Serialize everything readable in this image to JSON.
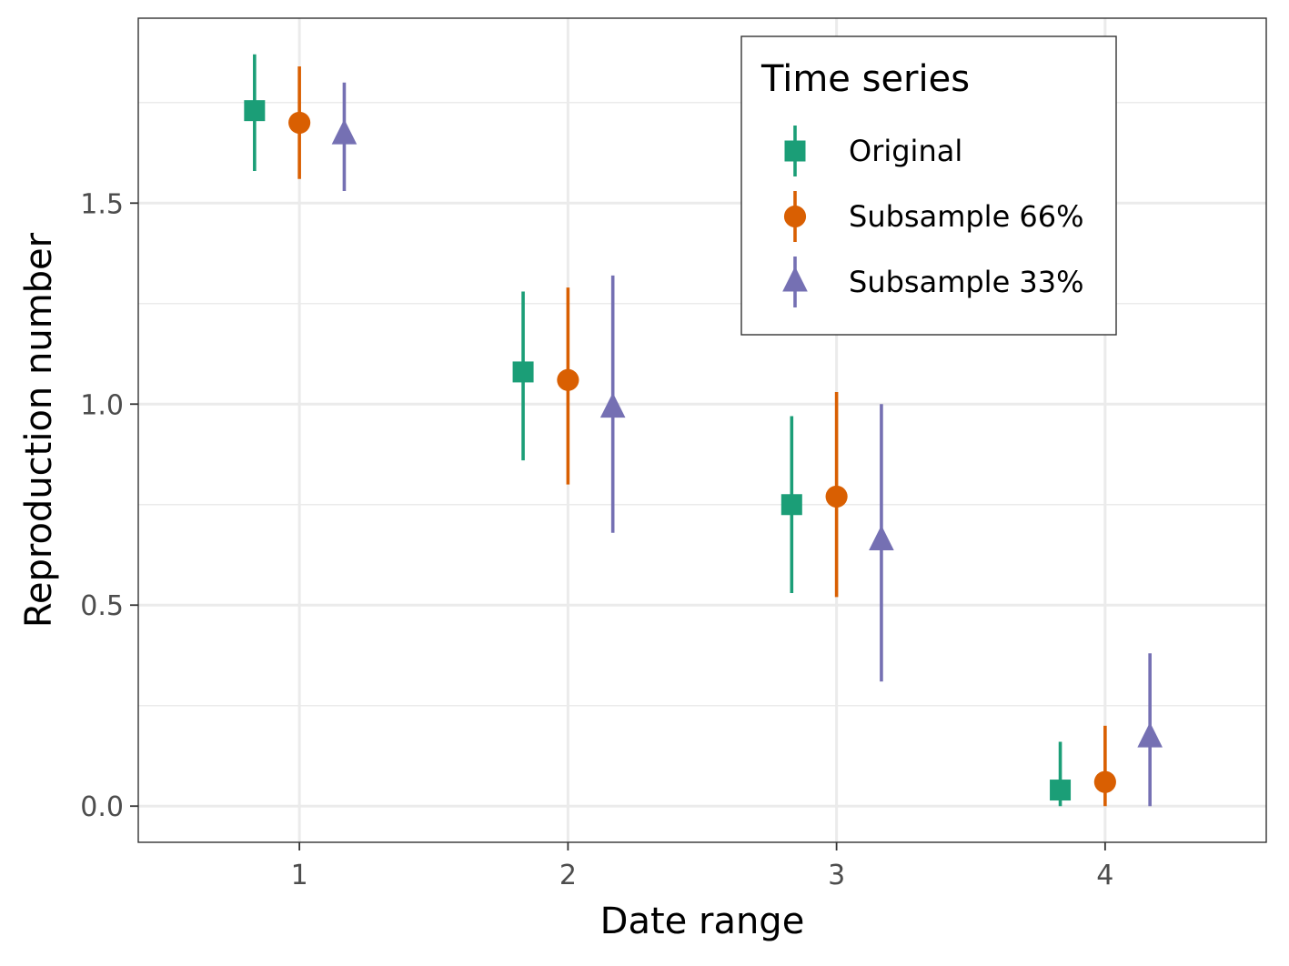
{
  "chart_data": {
    "type": "scatter",
    "title": "",
    "xlabel": "Date range",
    "ylabel": "Reproduction number",
    "categories": [
      "1",
      "2",
      "3",
      "4"
    ],
    "xlim": [
      0.4,
      4.6
    ],
    "ylim": [
      -0.09,
      1.96
    ],
    "yticks": [
      0.0,
      0.5,
      1.0,
      1.5
    ],
    "ytick_labels": [
      "0.0",
      "0.5",
      "1.0",
      "1.5"
    ],
    "grid": true,
    "legend": {
      "title": "Time series",
      "placement": "top-right"
    },
    "dodge": [
      -0.167,
      0,
      0.167
    ],
    "series": [
      {
        "name": "Original",
        "color": "#1b9e77",
        "shape": "square",
        "values": [
          1.73,
          1.08,
          0.75,
          0.04
        ],
        "lower": [
          1.58,
          0.86,
          0.53,
          0.0
        ],
        "upper": [
          1.87,
          1.28,
          0.97,
          0.16
        ]
      },
      {
        "name": "Subsample 66%",
        "color": "#d95f02",
        "shape": "circle",
        "values": [
          1.7,
          1.06,
          0.77,
          0.06
        ],
        "lower": [
          1.56,
          0.8,
          0.52,
          0.0
        ],
        "upper": [
          1.84,
          1.29,
          1.03,
          0.2
        ]
      },
      {
        "name": "Subsample 33%",
        "color": "#7570b3",
        "shape": "triangle",
        "values": [
          1.67,
          0.99,
          0.66,
          0.17
        ],
        "lower": [
          1.53,
          0.68,
          0.31,
          0.0
        ],
        "upper": [
          1.8,
          1.32,
          1.0,
          0.38
        ]
      }
    ]
  }
}
